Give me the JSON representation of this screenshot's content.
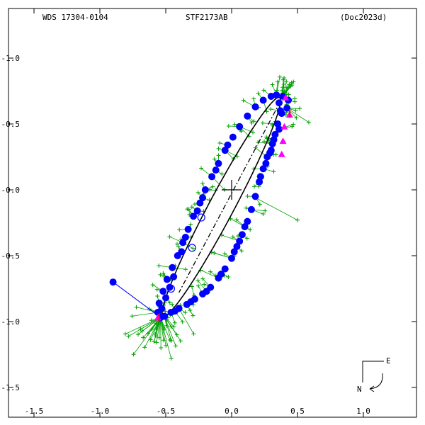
{
  "header": {
    "left": "WDS 17304-0104",
    "center": "STF2173AB",
    "right": "(Doc2023d)"
  },
  "compass": {
    "east": "E",
    "north": "N"
  },
  "chart_data": {
    "type": "scatter",
    "title": "STF2173AB",
    "xlim": [
      -1.5,
      1.5
    ],
    "ylim": [
      1.5,
      -1.5
    ],
    "x_ticks": [
      {
        "v": -1.5,
        "label": "-1.5"
      },
      {
        "v": -1.0,
        "label": "-1.0"
      },
      {
        "v": -0.5,
        "label": "-0.5"
      },
      {
        "v": 0.0,
        "label": "0.0"
      },
      {
        "v": 0.5,
        "label": "0.5"
      },
      {
        "v": 1.0,
        "label": "1.0"
      }
    ],
    "y_ticks": [
      {
        "v": -1.0,
        "label": "-1.0"
      },
      {
        "v": -0.5,
        "label": "-0.5"
      },
      {
        "v": 0.0,
        "label": "-0.0"
      },
      {
        "v": 0.5,
        "label": "-0.5"
      },
      {
        "v": 1.0,
        "label": "-1.0"
      },
      {
        "v": 1.5,
        "label": "-1.5"
      }
    ],
    "grid": false,
    "primary_star": [
      0,
      0
    ],
    "line_of_nodes": [
      [
        0.37,
        -0.67
      ],
      [
        -0.4,
        0.78
      ]
    ],
    "orbit_color": "#000000",
    "measure_color": "#0000ff",
    "micrometer_color": "#00a000",
    "highlight_color": "#ff00ff",
    "outlier": {
      "from": [
        -0.9,
        0.7
      ],
      "to": [
        -0.55,
        0.96
      ]
    },
    "micrometer_outlier": {
      "from": [
        0.2,
        0.07
      ],
      "to": [
        0.5,
        0.23
      ]
    },
    "highlights": [
      [
        0.41,
        -0.7
      ],
      [
        0.44,
        -0.57
      ],
      [
        0.4,
        -0.48
      ],
      [
        0.39,
        -0.37
      ],
      [
        0.38,
        -0.27
      ],
      [
        -0.56,
        0.97
      ]
    ],
    "red_markers": [
      [
        0.44,
        -0.58
      ],
      [
        -0.55,
        0.97
      ]
    ],
    "speckle_points": [
      [
        0.36,
        -0.66
      ],
      [
        0.39,
        -0.71
      ],
      [
        0.43,
        -0.68
      ],
      [
        0.42,
        -0.62
      ],
      [
        0.38,
        -0.58
      ],
      [
        0.35,
        -0.5
      ],
      [
        0.33,
        -0.42
      ],
      [
        0.31,
        -0.35
      ],
      [
        0.27,
        -0.25
      ],
      [
        0.24,
        -0.16
      ],
      [
        0.21,
        -0.06
      ],
      [
        0.18,
        0.05
      ],
      [
        0.15,
        0.15
      ],
      [
        0.12,
        0.24
      ],
      [
        0.08,
        0.34
      ],
      [
        0.04,
        0.43
      ],
      [
        0.0,
        0.52
      ],
      [
        -0.05,
        0.6
      ],
      [
        -0.1,
        0.67
      ],
      [
        -0.16,
        0.74
      ],
      [
        -0.22,
        0.79
      ],
      [
        -0.28,
        0.83
      ],
      [
        -0.34,
        0.87
      ],
      [
        -0.4,
        0.9
      ],
      [
        -0.46,
        0.93
      ],
      [
        -0.51,
        0.96
      ],
      [
        -0.54,
        0.97
      ],
      [
        -0.56,
        0.93
      ],
      [
        -0.55,
        0.86
      ],
      [
        -0.52,
        0.77
      ],
      [
        -0.49,
        0.68
      ],
      [
        -0.45,
        0.59
      ],
      [
        -0.41,
        0.5
      ],
      [
        -0.37,
        0.4
      ],
      [
        -0.33,
        0.3
      ],
      [
        -0.29,
        0.2
      ],
      [
        -0.24,
        0.1
      ],
      [
        -0.2,
        0.0
      ],
      [
        -0.15,
        -0.1
      ],
      [
        -0.1,
        -0.2
      ],
      [
        -0.05,
        -0.3
      ],
      [
        0.01,
        -0.4
      ],
      [
        0.06,
        -0.48
      ],
      [
        0.12,
        -0.56
      ],
      [
        0.18,
        -0.63
      ],
      [
        0.24,
        -0.68
      ],
      [
        0.3,
        -0.71
      ],
      [
        0.34,
        -0.72
      ],
      [
        0.37,
        -0.6
      ],
      [
        0.36,
        -0.46
      ],
      [
        0.32,
        -0.38
      ],
      [
        0.3,
        -0.3
      ],
      [
        -0.53,
        0.9
      ],
      [
        -0.5,
        0.82
      ],
      [
        -0.47,
        0.74
      ],
      [
        -0.44,
        0.66
      ],
      [
        -0.38,
        0.47
      ],
      [
        -0.35,
        0.36
      ],
      [
        -0.26,
        0.16
      ],
      [
        -0.22,
        0.06
      ],
      [
        0.1,
        0.28
      ],
      [
        0.06,
        0.39
      ],
      [
        0.02,
        0.47
      ],
      [
        -0.08,
        0.64
      ],
      [
        -0.19,
        0.77
      ],
      [
        -0.31,
        0.85
      ],
      [
        -0.43,
        0.92
      ],
      [
        0.22,
        -0.1
      ],
      [
        0.26,
        -0.2
      ],
      [
        0.29,
        -0.28
      ],
      [
        -0.12,
        -0.15
      ],
      [
        -0.03,
        -0.34
      ]
    ],
    "hollow_points": [
      [
        -0.23,
        0.21
      ],
      [
        -0.46,
        0.75
      ],
      [
        -0.3,
        0.44
      ]
    ],
    "micrometer_seeds": [
      [
        0.45,
        -0.8
      ],
      [
        0.42,
        -0.72
      ],
      [
        0.38,
        -0.6
      ],
      [
        0.34,
        -0.46
      ],
      [
        0.28,
        -0.3
      ],
      [
        0.22,
        -0.1
      ],
      [
        0.16,
        0.08
      ],
      [
        0.1,
        0.25
      ],
      [
        0.03,
        0.42
      ],
      [
        -0.06,
        0.58
      ],
      [
        -0.16,
        0.72
      ],
      [
        -0.28,
        0.82
      ],
      [
        -0.4,
        0.9
      ],
      [
        -0.52,
        0.97
      ],
      [
        -0.58,
        1.05
      ],
      [
        -0.55,
        0.9
      ],
      [
        -0.5,
        0.75
      ],
      [
        -0.45,
        0.6
      ],
      [
        -0.38,
        0.43
      ],
      [
        -0.3,
        0.25
      ],
      [
        -0.22,
        0.08
      ],
      [
        -0.14,
        -0.1
      ],
      [
        -0.05,
        -0.28
      ],
      [
        0.06,
        -0.46
      ],
      [
        0.18,
        -0.6
      ],
      [
        0.3,
        -0.7
      ],
      [
        0.4,
        -0.76
      ],
      [
        -0.6,
        1.1
      ],
      [
        -0.65,
        1.0
      ],
      [
        -0.7,
        1.15
      ],
      [
        0.48,
        -0.7
      ],
      [
        0.5,
        -0.55
      ],
      [
        -0.45,
        1.2
      ],
      [
        -0.35,
        1.05
      ]
    ]
  }
}
